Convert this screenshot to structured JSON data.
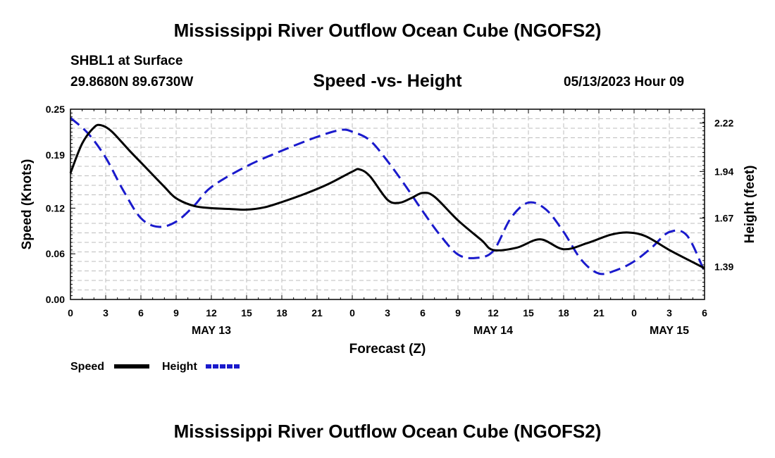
{
  "header": {
    "title": "Mississippi River Outflow Ocean Cube (NGOFS2)",
    "station": "SHBL1 at Surface",
    "coords": "29.8680N  89.6730W",
    "subtitle": "Speed -vs- Height",
    "datetime": "05/13/2023 Hour 09"
  },
  "footer": {
    "title": "Mississippi River Outflow Ocean Cube (NGOFS2)"
  },
  "colors": {
    "speed": "#000000",
    "height": "#1a1acc",
    "grid": "#bdbdbd"
  },
  "chart_data": {
    "type": "line",
    "title": "Speed -vs- Height",
    "xlabel": "Forecast (Z)",
    "ylabel": "Speed (Knots)",
    "y2label": "Height (feet)",
    "xlim": [
      0,
      54
    ],
    "ylim": [
      0,
      0.25
    ],
    "y2lim": [
      1.2,
      2.3
    ],
    "x_ticks": [
      0,
      3,
      6,
      9,
      12,
      15,
      18,
      21,
      24,
      27,
      30,
      33,
      36,
      39,
      42,
      45,
      48,
      51,
      54
    ],
    "x_tick_labels": [
      "0",
      "3",
      "6",
      "9",
      "12",
      "15",
      "18",
      "21",
      "0",
      "3",
      "6",
      "9",
      "12",
      "15",
      "18",
      "21",
      "0",
      "3",
      "6"
    ],
    "date_labels": [
      {
        "x": 12,
        "label": "MAY 13"
      },
      {
        "x": 36,
        "label": "MAY 14"
      },
      {
        "x": 51,
        "label": "MAY 15"
      }
    ],
    "y_ticks": [
      0.0,
      0.06,
      0.12,
      0.19,
      0.25
    ],
    "y_tick_labels": [
      "0.00",
      "0.06",
      "0.12",
      "0.19",
      "0.25"
    ],
    "y2_ticks": [
      1.39,
      1.67,
      1.94,
      2.22
    ],
    "y2_tick_labels": [
      "1.39",
      "1.67",
      "1.94",
      "2.22"
    ],
    "grid": true,
    "series": [
      {
        "name": "Speed",
        "axis": "left",
        "style": "solid",
        "x": [
          0,
          1,
          2,
          2.6,
          3.5,
          5,
          6.5,
          8,
          9,
          10.5,
          12,
          13.5,
          15,
          16.5,
          18,
          20,
          22,
          24,
          24.6,
          25.5,
          27,
          28,
          29,
          30,
          31,
          33,
          35,
          36,
          38,
          40,
          42,
          44,
          46,
          47.5,
          49,
          51,
          53,
          54
        ],
        "y": [
          0.166,
          0.205,
          0.226,
          0.229,
          0.221,
          0.196,
          0.172,
          0.148,
          0.133,
          0.123,
          0.12,
          0.119,
          0.118,
          0.121,
          0.128,
          0.139,
          0.152,
          0.168,
          0.171,
          0.162,
          0.131,
          0.127,
          0.133,
          0.14,
          0.135,
          0.104,
          0.078,
          0.065,
          0.068,
          0.079,
          0.066,
          0.074,
          0.085,
          0.088,
          0.083,
          0.065,
          0.049,
          0.041
        ]
      },
      {
        "name": "Height",
        "axis": "right",
        "style": "dashed",
        "x": [
          0,
          1.5,
          3,
          4.5,
          6,
          7.5,
          9,
          10.5,
          12,
          15,
          18,
          21,
          23,
          24,
          25.5,
          27,
          28.5,
          30,
          31.5,
          33,
          34.5,
          36,
          37.5,
          39,
          40.5,
          42,
          43.5,
          45,
          46.5,
          48,
          49.5,
          51,
          52.5,
          54
        ],
        "y": [
          2.25,
          2.16,
          2.02,
          1.83,
          1.67,
          1.62,
          1.65,
          1.74,
          1.85,
          1.97,
          2.06,
          2.14,
          2.18,
          2.17,
          2.12,
          2.0,
          1.86,
          1.71,
          1.57,
          1.46,
          1.44,
          1.48,
          1.67,
          1.76,
          1.72,
          1.59,
          1.43,
          1.35,
          1.37,
          1.42,
          1.5,
          1.59,
          1.57,
          1.36
        ]
      }
    ],
    "legend": [
      {
        "label": "Speed",
        "series": "Speed"
      },
      {
        "label": "Height",
        "series": "Height"
      }
    ],
    "legend_position": "bottom-left"
  }
}
